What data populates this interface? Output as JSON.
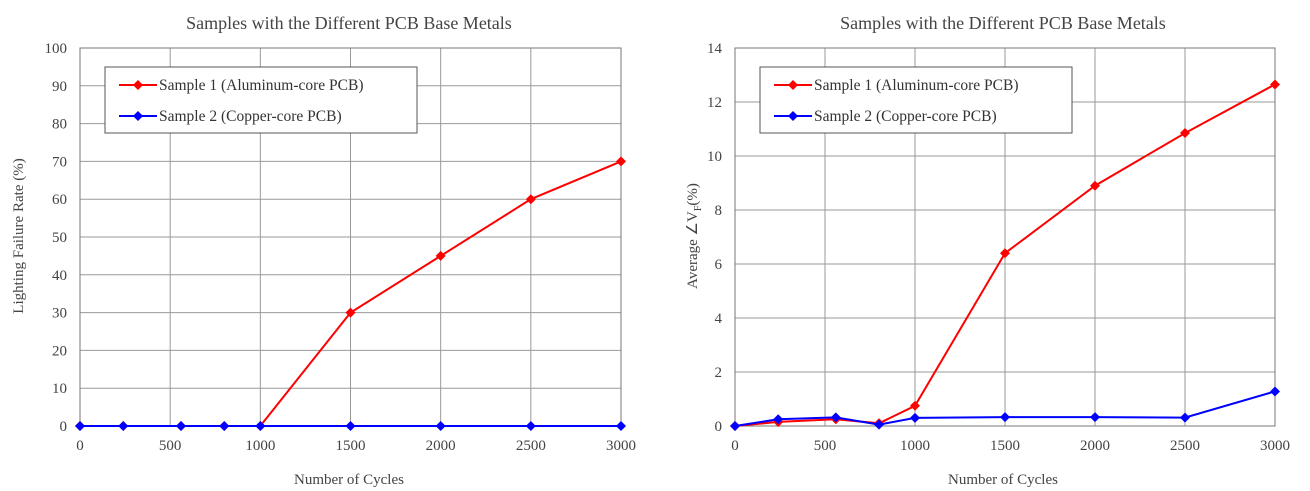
{
  "chart_data": [
    {
      "type": "line",
      "title": "Samples with the Different PCB Base Metals",
      "xlabel": "Number of Cycles",
      "ylabel": "Lighting Failure Rate (%)",
      "xlim": [
        0,
        3000
      ],
      "ylim": [
        0,
        100
      ],
      "xticks": [
        0,
        500,
        1000,
        1500,
        2000,
        2500,
        3000
      ],
      "yticks": [
        0,
        10,
        20,
        30,
        40,
        50,
        60,
        70,
        80,
        90,
        100
      ],
      "grid": true,
      "legend": "top-left",
      "series": [
        {
          "name": "Sample 1 (Aluminum-core PCB)",
          "color": "#ff0000",
          "x": [
            0,
            240,
            560,
            800,
            1000,
            1500,
            2000,
            2500,
            3000
          ],
          "y": [
            0,
            0,
            0,
            0,
            0,
            30,
            45,
            60,
            70
          ]
        },
        {
          "name": "Sample 2 (Copper-core PCB)",
          "color": "#0000ff",
          "x": [
            0,
            240,
            560,
            800,
            1000,
            1500,
            2000,
            2500,
            3000
          ],
          "y": [
            0,
            0,
            0,
            0,
            0,
            0,
            0,
            0,
            0
          ]
        }
      ]
    },
    {
      "type": "line",
      "title": "Samples with the Different PCB Base Metals",
      "xlabel": "Number of Cycles",
      "ylabel": "Average ∠V",
      "ylabel_sub": "F",
      "ylabel_suffix": "(%)",
      "xlim": [
        0,
        3000
      ],
      "ylim": [
        0,
        14
      ],
      "xticks": [
        0,
        500,
        1000,
        1500,
        2000,
        2500,
        3000
      ],
      "yticks": [
        0,
        2,
        4,
        6,
        8,
        10,
        12,
        14
      ],
      "grid": true,
      "legend": "top-left",
      "series": [
        {
          "name": "Sample 1 (Aluminum-core PCB)",
          "color": "#ff0000",
          "x": [
            0,
            240,
            560,
            800,
            1000,
            1500,
            2000,
            2500,
            3000
          ],
          "y": [
            0,
            0.15,
            0.25,
            0.1,
            0.75,
            6.4,
            8.9,
            10.85,
            12.65
          ]
        },
        {
          "name": "Sample 2 (Copper-core PCB)",
          "color": "#0000ff",
          "x": [
            0,
            240,
            560,
            800,
            1000,
            1500,
            2000,
            2500,
            3000
          ],
          "y": [
            0,
            0.25,
            0.32,
            0.05,
            0.3,
            0.33,
            0.33,
            0.31,
            1.28
          ]
        }
      ]
    }
  ]
}
